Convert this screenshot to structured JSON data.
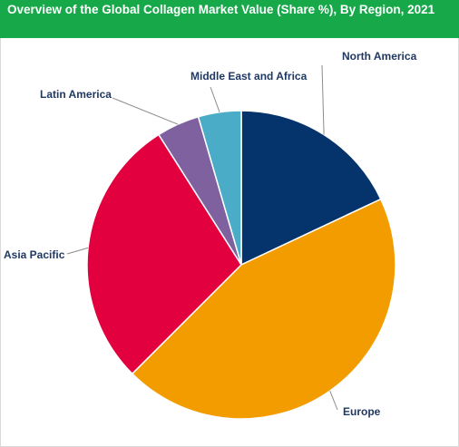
{
  "header": {
    "title": "Overview of the Global Collagen Market Value (Share %), By Region, 2021"
  },
  "chart_data": {
    "type": "pie",
    "title": "Overview of the Global Collagen Market Value (Share %), By Region, 2021",
    "start_angle_deg": 0,
    "direction": "clockwise",
    "slices": [
      {
        "label": "North America",
        "value": 18.0,
        "color": "#05336b"
      },
      {
        "label": "Europe",
        "value": 44.5,
        "color": "#f29c00"
      },
      {
        "label": "Asia Pacific",
        "value": 28.5,
        "color": "#e2003f"
      },
      {
        "label": "Latin America",
        "value": 4.5,
        "color": "#80619f"
      },
      {
        "label": "Middle East and Africa",
        "value": 4.5,
        "color": "#4aacc6"
      }
    ]
  }
}
